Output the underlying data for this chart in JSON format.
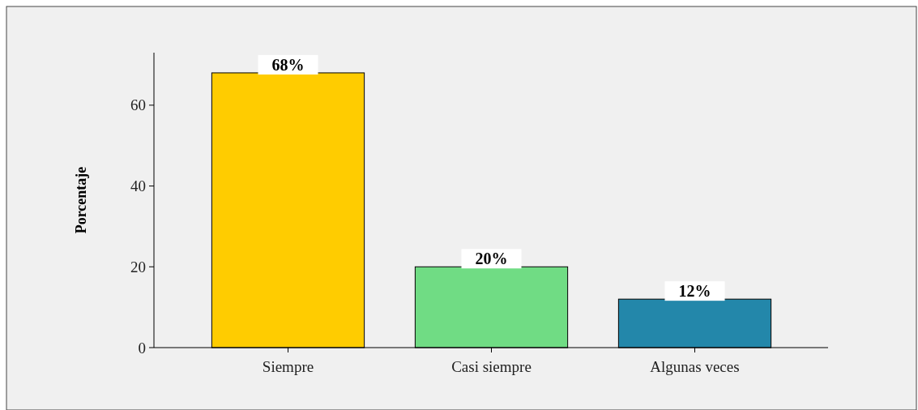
{
  "chart_data": {
    "type": "bar",
    "ylabel": "Porcentaje",
    "categories": [
      "Siempre",
      "Casi siempre",
      "Algunas veces"
    ],
    "values": [
      68,
      20,
      12
    ],
    "colors": [
      "#ffcc00",
      "#70dc84",
      "#2387aa"
    ],
    "value_labels": [
      "68%",
      "20%",
      "12%"
    ],
    "ylim": [
      0,
      73
    ],
    "yticks": [
      0,
      20,
      40,
      60
    ],
    "grid": false
  }
}
